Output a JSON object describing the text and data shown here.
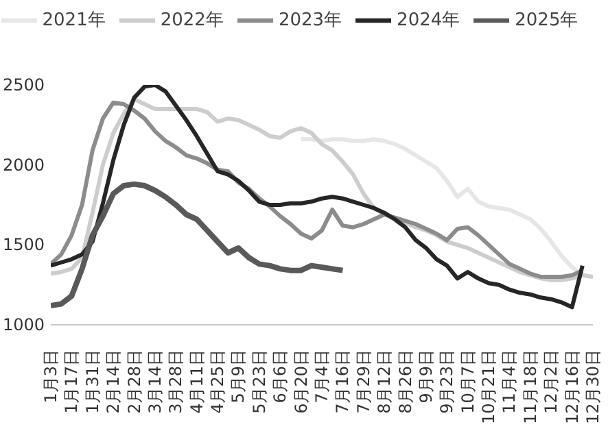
{
  "chart_data": {
    "type": "line",
    "categories": [
      "1月3日",
      null,
      "1月17日",
      null,
      "1月31日",
      null,
      "2月14日",
      null,
      "2月28日",
      null,
      "3月14日",
      null,
      "3月28日",
      null,
      "4月11日",
      null,
      "4月25日",
      null,
      "5月9日",
      null,
      "5月23日",
      null,
      "6月6日",
      null,
      "6月20日",
      null,
      "7月4日",
      null,
      "7月16日",
      null,
      "7月29日",
      null,
      "8月12日",
      null,
      "8月26日",
      null,
      "9月9日",
      null,
      "9月23日",
      null,
      "10月7日",
      null,
      "10月21日",
      null,
      "11月4日",
      null,
      "11月18日",
      null,
      "12月2日",
      null,
      "12月16日",
      null,
      "12月30日"
    ],
    "series": [
      {
        "name": "2021年",
        "color": "#e6e6e6",
        "values": [
          null,
          null,
          null,
          null,
          null,
          null,
          null,
          null,
          null,
          null,
          null,
          null,
          null,
          null,
          null,
          null,
          null,
          null,
          null,
          null,
          null,
          null,
          null,
          null,
          2160,
          2160,
          2150,
          2160,
          2160,
          2150,
          2150,
          2160,
          2150,
          2130,
          2100,
          2060,
          2020,
          1980,
          1900,
          1800,
          1850,
          1770,
          1740,
          1730,
          1720,
          1690,
          1660,
          1600,
          1520,
          1430,
          1360,
          1310,
          1300
        ]
      },
      {
        "name": "2022年",
        "color": "#cdcdcd",
        "values": [
          1320,
          1330,
          1350,
          1420,
          1700,
          2000,
          2200,
          2320,
          2410,
          2380,
          2350,
          2350,
          2350,
          2350,
          2350,
          2330,
          2270,
          2290,
          2280,
          2250,
          2220,
          2180,
          2170,
          2210,
          2230,
          2200,
          2130,
          2090,
          2020,
          1940,
          1820,
          1730,
          1690,
          1660,
          1640,
          1610,
          1590,
          1560,
          1520,
          1500,
          1480,
          1450,
          1420,
          1390,
          1360,
          1330,
          1310,
          1290,
          1280,
          1280,
          1290,
          1310,
          1300
        ]
      },
      {
        "name": "2023年",
        "color": "#8c8c8c",
        "values": [
          1380,
          1440,
          1560,
          1750,
          2090,
          2290,
          2390,
          2380,
          2340,
          2290,
          2210,
          2150,
          2110,
          2060,
          2040,
          2010,
          1970,
          1960,
          1890,
          1850,
          1790,
          1740,
          1680,
          1630,
          1570,
          1540,
          1590,
          1720,
          1620,
          1610,
          1630,
          1660,
          1690,
          1670,
          1650,
          1630,
          1600,
          1570,
          1530,
          1600,
          1610,
          1560,
          1500,
          1440,
          1380,
          1350,
          1320,
          1300,
          1300,
          1300,
          1310,
          1340,
          null
        ]
      },
      {
        "name": "2024年",
        "color": "#262626",
        "values": [
          1370,
          1390,
          1410,
          1440,
          1520,
          1760,
          2030,
          2250,
          2420,
          2490,
          2500,
          2460,
          2370,
          2280,
          2180,
          2070,
          1960,
          1940,
          1900,
          1840,
          1770,
          1750,
          1750,
          1760,
          1760,
          1770,
          1790,
          1800,
          1790,
          1770,
          1750,
          1730,
          1700,
          1660,
          1610,
          1530,
          1480,
          1410,
          1370,
          1290,
          1330,
          1290,
          1260,
          1250,
          1220,
          1200,
          1190,
          1170,
          1160,
          1140,
          1110,
          1370,
          null
        ]
      },
      {
        "name": "2025年",
        "color": "#595959",
        "values": [
          1120,
          1130,
          1180,
          1350,
          1560,
          1680,
          1820,
          1870,
          1880,
          1870,
          1840,
          1800,
          1750,
          1690,
          1660,
          1590,
          1520,
          1450,
          1480,
          1420,
          1380,
          1370,
          1350,
          1340,
          1340,
          1370,
          1360,
          1350,
          1340,
          null,
          null,
          null,
          null,
          null,
          null,
          null,
          null,
          null,
          null,
          null,
          null,
          null,
          null,
          null,
          null,
          null,
          null,
          null,
          null,
          null,
          null,
          null,
          null
        ]
      }
    ],
    "ylim": [
      1000,
      2500
    ],
    "yticks": [
      1000,
      1500,
      2000,
      2500
    ],
    "grid": false,
    "legend": "top",
    "marker": "none",
    "line_style": "solid"
  }
}
